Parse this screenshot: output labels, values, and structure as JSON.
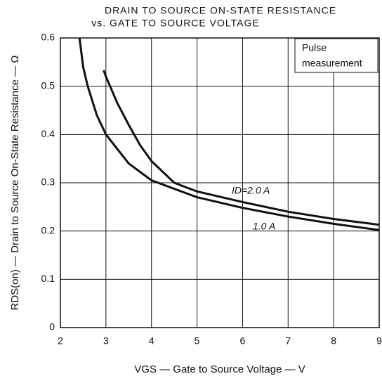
{
  "chart_data": {
    "type": "line",
    "title": [
      "DRAIN TO SOURCE ON-STATE RESISTANCE",
      "vs. GATE TO SOURCE VOLTAGE"
    ],
    "xlabel": "VGS — Gate to Source Voltage — V",
    "ylabel": "RDS(on) — Drain to Source On-State Resistance — Ω",
    "annotation": [
      "Pulse",
      "measurement"
    ],
    "xlim": [
      2,
      9
    ],
    "xticks": [
      2,
      3,
      4,
      5,
      6,
      7,
      8,
      9
    ],
    "ylim": [
      0,
      0.6
    ],
    "yticks": [
      {
        "value": 0,
        "label": "0"
      },
      0.1,
      0.2,
      0.3,
      0.4,
      0.5,
      0.6
    ],
    "grid": true,
    "series": [
      {
        "name": "ID=2.0 A",
        "color": "#111111",
        "x": [
          2.95,
          3,
          3.25,
          3.5,
          3.75,
          4,
          4.5,
          5,
          6,
          7,
          8,
          9
        ],
        "values": [
          0.533,
          0.52,
          0.465,
          0.42,
          0.378,
          0.345,
          0.3,
          0.282,
          0.26,
          0.24,
          0.225,
          0.213
        ]
      },
      {
        "name": "1.0 A",
        "color": "#111111",
        "x": [
          2.42,
          2.5,
          2.6,
          2.8,
          3,
          3.5,
          4,
          5,
          6,
          7,
          8,
          9
        ],
        "values": [
          0.6,
          0.54,
          0.5,
          0.44,
          0.4,
          0.34,
          0.305,
          0.27,
          0.248,
          0.23,
          0.215,
          0.202
        ]
      }
    ]
  }
}
